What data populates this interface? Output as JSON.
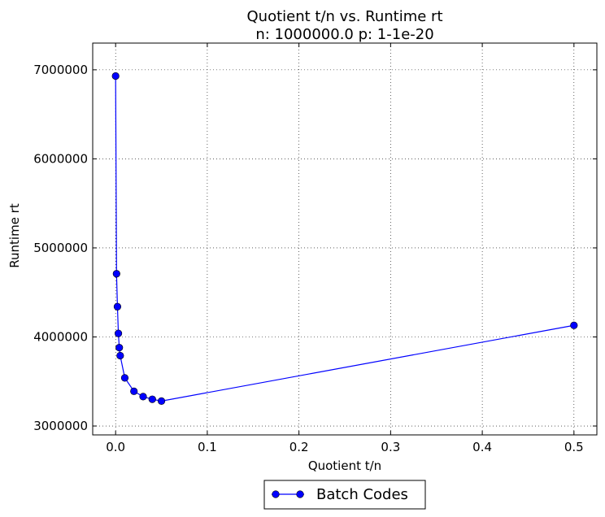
{
  "chart_data": {
    "type": "line",
    "title": "Quotient t/n vs. Runtime rt",
    "subtitle": "n: 1000000.0 p: 1-1e-20",
    "xlabel": "Quotient t/n",
    "ylabel": "Runtime rt",
    "xlim": [
      -0.025,
      0.525
    ],
    "ylim": [
      2900000,
      7300000
    ],
    "xticks": [
      0.0,
      0.1,
      0.2,
      0.3,
      0.4,
      0.5
    ],
    "xtick_labels": [
      "0.0",
      "0.1",
      "0.2",
      "0.3",
      "0.4",
      "0.5"
    ],
    "yticks": [
      3000000,
      4000000,
      5000000,
      6000000,
      7000000
    ],
    "ytick_labels": [
      "3000000",
      "4000000",
      "5000000",
      "6000000",
      "7000000"
    ],
    "grid": true,
    "legend_position": "bottom-center",
    "series": [
      {
        "name": "Batch Codes",
        "color": "#0000ff",
        "marker": "circle",
        "x": [
          0.0,
          0.001,
          0.002,
          0.003,
          0.004,
          0.005,
          0.01,
          0.02,
          0.03,
          0.04,
          0.05,
          0.5
        ],
        "y": [
          6930000,
          4710000,
          4340000,
          4040000,
          3880000,
          3790000,
          3540000,
          3390000,
          3330000,
          3300000,
          3280000,
          4130000
        ]
      }
    ]
  }
}
